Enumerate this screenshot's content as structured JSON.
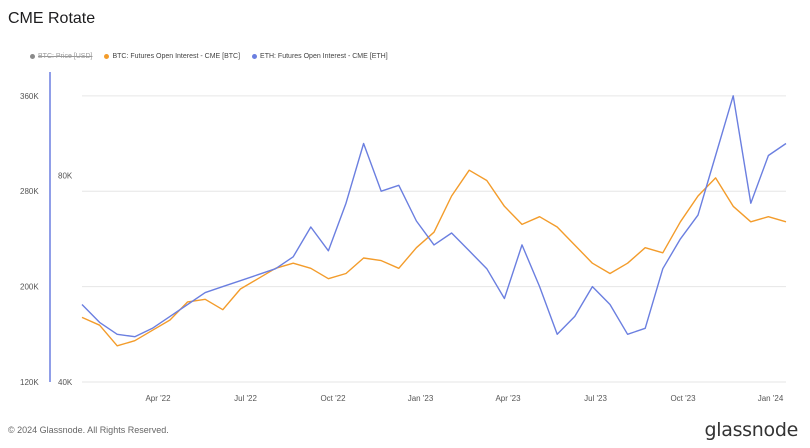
{
  "title": "CME Rotate",
  "footer": "© 2024 Glassnode. All Rights Reserved.",
  "brand": "glassnode",
  "legend": [
    {
      "label": "BTC: Price [USD]",
      "color": "#8a8a8a",
      "hidden": true
    },
    {
      "label": "BTC: Futures Open Interest - CME [BTC]",
      "color": "#f39c2b",
      "hidden": false
    },
    {
      "label": "ETH: Futures Open Interest - CME [ETH]",
      "color": "#6b7fe0",
      "hidden": false
    }
  ],
  "chart_data": {
    "type": "line",
    "x_tick_labels": [
      "Apr '22",
      "Jul '22",
      "Oct '22",
      "Jan '23",
      "Apr '23",
      "Jul '23",
      "Oct '23",
      "Jan '24"
    ],
    "y_left": {
      "ticks": [
        "360K",
        "280K",
        "200K",
        "120K"
      ],
      "range": [
        120000,
        380000
      ]
    },
    "y_right": {
      "ticks": [
        "80K",
        "40K"
      ],
      "range": [
        40000,
        100000
      ]
    },
    "grid": true,
    "series": [
      {
        "name": "BTC: Futures Open Interest - CME [BTC]",
        "color": "#f39c2b",
        "axis": "right",
        "values": [
          52500,
          51000,
          47000,
          48000,
          50000,
          52000,
          55500,
          56000,
          54000,
          58000,
          60000,
          62000,
          63000,
          62000,
          60000,
          61000,
          64000,
          63500,
          62000,
          66000,
          69000,
          76000,
          81000,
          79000,
          74000,
          70500,
          72000,
          70000,
          66500,
          63000,
          61000,
          63000,
          66000,
          65000,
          71000,
          76000,
          79500,
          74000,
          71000,
          72000,
          71000
        ]
      },
      {
        "name": "ETH: Futures Open Interest - CME [ETH]",
        "color": "#6b7fe0",
        "axis": "left",
        "values": [
          185000,
          170000,
          160000,
          158000,
          165000,
          175000,
          185000,
          195000,
          200000,
          205000,
          210000,
          215000,
          225000,
          250000,
          230000,
          270000,
          320000,
          280000,
          285000,
          255000,
          235000,
          245000,
          230000,
          215000,
          190000,
          235000,
          200000,
          160000,
          175000,
          200000,
          185000,
          160000,
          165000,
          215000,
          240000,
          260000,
          310000,
          360000,
          270000,
          310000,
          320000
        ]
      }
    ]
  }
}
